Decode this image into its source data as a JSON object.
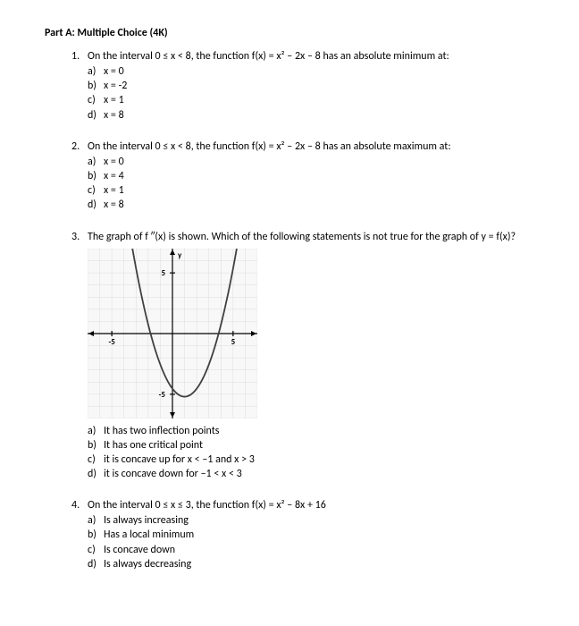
{
  "part_title": "Part A: Multiple Choice (4K)",
  "questions": [
    {
      "num": "1.",
      "stem": "On the interval 0 ≤ x < 8, the function f(x) = x² – 2x – 8 has an absolute minimum at:",
      "choices": [
        {
          "lbl": "a)",
          "txt": "x = 0"
        },
        {
          "lbl": "b)",
          "txt": "x = -2"
        },
        {
          "lbl": "c)",
          "txt": "x = 1"
        },
        {
          "lbl": "d)",
          "txt": "x = 8"
        }
      ]
    },
    {
      "num": "2.",
      "stem": "On the interval 0 ≤ x < 8, the function f(x) = x² – 2x – 8 has an absolute maximum at:",
      "choices": [
        {
          "lbl": "a)",
          "txt": "x = 0"
        },
        {
          "lbl": "b)",
          "txt": "x = 4"
        },
        {
          "lbl": "c)",
          "txt": "x = 1"
        },
        {
          "lbl": "d)",
          "txt": "x = 8"
        }
      ]
    },
    {
      "num": "3.",
      "stem": "The graph of f ″(x) is shown. Which of the following statements is not true for the graph of y = f(x)?",
      "choices": [
        {
          "lbl": "a)",
          "txt": "It has two inflection points"
        },
        {
          "lbl": "b)",
          "txt": "It has one critical point"
        },
        {
          "lbl": "c)",
          "txt": "it is concave up for x < –1 and x > 3"
        },
        {
          "lbl": "d)",
          "txt": "it is concave down for –1 < x < 3"
        }
      ],
      "graph": {
        "width": 190,
        "height": 190,
        "bg": "#f8f8f8",
        "grid_color": "#dcdcdc",
        "axis_color": "#000000",
        "curve_color": "#404040",
        "xlim": [
          -7,
          7
        ],
        "ylim": [
          -7,
          7
        ],
        "tick_step": 1,
        "label_neg5": "-5",
        "label_pos5": "5",
        "label_negy5": "-5",
        "label_posy5": "5",
        "ylabel_top": "y",
        "parabola_vertex_x": 1,
        "parabola_vertex_y": -5.2,
        "parabola_a": 0.66
      }
    },
    {
      "num": "4.",
      "stem": "On the interval 0 ≤ x ≤ 3, the function f(x) = x² – 8x + 16",
      "choices": [
        {
          "lbl": "a)",
          "txt": "Is always increasing"
        },
        {
          "lbl": "b)",
          "txt": "Has a local minimum"
        },
        {
          "lbl": "c)",
          "txt": "Is concave down"
        },
        {
          "lbl": "d)",
          "txt": "Is always decreasing"
        }
      ]
    }
  ]
}
